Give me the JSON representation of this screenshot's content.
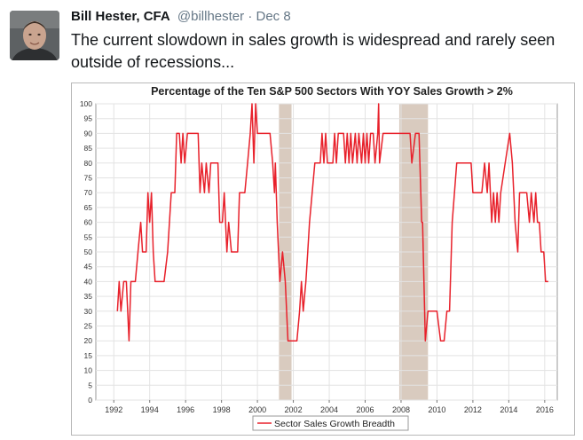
{
  "tweet": {
    "author_name": "Bill Hester, CFA",
    "handle": "@billhester",
    "separator": "·",
    "date": "Dec 8",
    "text": "The current slowdown in sales growth is widespread and rarely seen outside of recessions...",
    "avatar_icon": "profile-photo"
  },
  "chart_data": {
    "type": "line",
    "title": "Percentage of the Ten S&P 500 Sectors With YOY Sales Growth > 2%",
    "xlabel": "",
    "ylabel": "",
    "xlim": [
      1991.0,
      2016.7
    ],
    "ylim": [
      0,
      100
    ],
    "y_ticks": [
      0,
      5,
      10,
      15,
      20,
      25,
      30,
      35,
      40,
      45,
      50,
      55,
      60,
      65,
      70,
      75,
      80,
      85,
      90,
      95,
      100
    ],
    "x_ticks": [
      1992,
      1994,
      1996,
      1998,
      2000,
      2002,
      2004,
      2006,
      2008,
      2010,
      2012,
      2014,
      2016
    ],
    "grid": true,
    "legend_position": "bottom-center",
    "line_color": "#e8212b",
    "recession_color": "#d9cbbf",
    "recessions": [
      [
        2001.2,
        2001.9
      ],
      [
        2007.9,
        2009.5
      ]
    ],
    "series": [
      {
        "name": "Sector Sales Growth Breadth",
        "points": [
          [
            1992.2,
            30
          ],
          [
            1992.3,
            40
          ],
          [
            1992.4,
            30
          ],
          [
            1992.55,
            40
          ],
          [
            1992.7,
            40
          ],
          [
            1992.85,
            20
          ],
          [
            1992.95,
            40
          ],
          [
            1993.2,
            40
          ],
          [
            1993.35,
            50
          ],
          [
            1993.5,
            60
          ],
          [
            1993.6,
            50
          ],
          [
            1993.8,
            50
          ],
          [
            1993.9,
            70
          ],
          [
            1994.0,
            60
          ],
          [
            1994.1,
            70
          ],
          [
            1994.2,
            50
          ],
          [
            1994.3,
            40
          ],
          [
            1994.8,
            40
          ],
          [
            1995.0,
            50
          ],
          [
            1995.2,
            70
          ],
          [
            1995.4,
            70
          ],
          [
            1995.5,
            90
          ],
          [
            1995.65,
            90
          ],
          [
            1995.75,
            80
          ],
          [
            1995.85,
            90
          ],
          [
            1995.95,
            80
          ],
          [
            1996.1,
            90
          ],
          [
            1996.7,
            90
          ],
          [
            1996.8,
            70
          ],
          [
            1996.9,
            80
          ],
          [
            1997.05,
            70
          ],
          [
            1997.15,
            80
          ],
          [
            1997.3,
            70
          ],
          [
            1997.4,
            80
          ],
          [
            1997.8,
            80
          ],
          [
            1997.9,
            60
          ],
          [
            1998.05,
            60
          ],
          [
            1998.15,
            70
          ],
          [
            1998.3,
            50
          ],
          [
            1998.4,
            60
          ],
          [
            1998.55,
            50
          ],
          [
            1998.9,
            50
          ],
          [
            1999.0,
            70
          ],
          [
            1999.3,
            70
          ],
          [
            1999.45,
            80
          ],
          [
            1999.6,
            90
          ],
          [
            1999.7,
            100
          ],
          [
            1999.8,
            80
          ],
          [
            1999.9,
            100
          ],
          [
            2000.0,
            90
          ],
          [
            2000.7,
            90
          ],
          [
            2000.85,
            80
          ],
          [
            2000.95,
            70
          ],
          [
            2001.0,
            80
          ],
          [
            2001.1,
            60
          ],
          [
            2001.25,
            40
          ],
          [
            2001.4,
            50
          ],
          [
            2001.55,
            40
          ],
          [
            2001.7,
            20
          ],
          [
            2002.2,
            20
          ],
          [
            2002.35,
            30
          ],
          [
            2002.45,
            40
          ],
          [
            2002.55,
            30
          ],
          [
            2002.7,
            40
          ],
          [
            2002.8,
            50
          ],
          [
            2002.9,
            60
          ],
          [
            2003.2,
            80
          ],
          [
            2003.5,
            80
          ],
          [
            2003.6,
            90
          ],
          [
            2003.7,
            80
          ],
          [
            2003.8,
            90
          ],
          [
            2003.9,
            80
          ],
          [
            2004.2,
            80
          ],
          [
            2004.3,
            90
          ],
          [
            2004.4,
            80
          ],
          [
            2004.5,
            90
          ],
          [
            2004.8,
            90
          ],
          [
            2004.9,
            80
          ],
          [
            2005.0,
            90
          ],
          [
            2005.1,
            80
          ],
          [
            2005.2,
            90
          ],
          [
            2005.3,
            80
          ],
          [
            2005.45,
            90
          ],
          [
            2005.55,
            80
          ],
          [
            2005.65,
            90
          ],
          [
            2005.8,
            80
          ],
          [
            2005.9,
            90
          ],
          [
            2006.0,
            80
          ],
          [
            2006.1,
            90
          ],
          [
            2006.2,
            80
          ],
          [
            2006.3,
            90
          ],
          [
            2006.45,
            90
          ],
          [
            2006.55,
            80
          ],
          [
            2006.7,
            90
          ],
          [
            2006.75,
            100
          ],
          [
            2006.8,
            80
          ],
          [
            2007.0,
            90
          ],
          [
            2008.5,
            90
          ],
          [
            2008.6,
            80
          ],
          [
            2008.8,
            90
          ],
          [
            2009.0,
            90
          ],
          [
            2009.15,
            60
          ],
          [
            2009.2,
            60
          ],
          [
            2009.35,
            20
          ],
          [
            2009.5,
            30
          ],
          [
            2010.0,
            30
          ],
          [
            2010.2,
            20
          ],
          [
            2010.4,
            20
          ],
          [
            2010.55,
            30
          ],
          [
            2010.7,
            30
          ],
          [
            2010.85,
            60
          ],
          [
            2011.1,
            80
          ],
          [
            2011.9,
            80
          ],
          [
            2012.0,
            70
          ],
          [
            2012.5,
            70
          ],
          [
            2012.65,
            80
          ],
          [
            2012.8,
            70
          ],
          [
            2012.9,
            80
          ],
          [
            2013.05,
            60
          ],
          [
            2013.15,
            70
          ],
          [
            2013.25,
            60
          ],
          [
            2013.35,
            70
          ],
          [
            2013.45,
            60
          ],
          [
            2013.55,
            70
          ],
          [
            2013.8,
            80
          ],
          [
            2014.05,
            90
          ],
          [
            2014.2,
            80
          ],
          [
            2014.35,
            60
          ],
          [
            2014.5,
            50
          ],
          [
            2014.6,
            70
          ],
          [
            2015.0,
            70
          ],
          [
            2015.15,
            60
          ],
          [
            2015.25,
            70
          ],
          [
            2015.4,
            60
          ],
          [
            2015.5,
            70
          ],
          [
            2015.6,
            60
          ],
          [
            2015.7,
            60
          ],
          [
            2015.8,
            50
          ],
          [
            2015.95,
            50
          ],
          [
            2016.05,
            40
          ],
          [
            2016.2,
            40
          ]
        ]
      }
    ]
  }
}
